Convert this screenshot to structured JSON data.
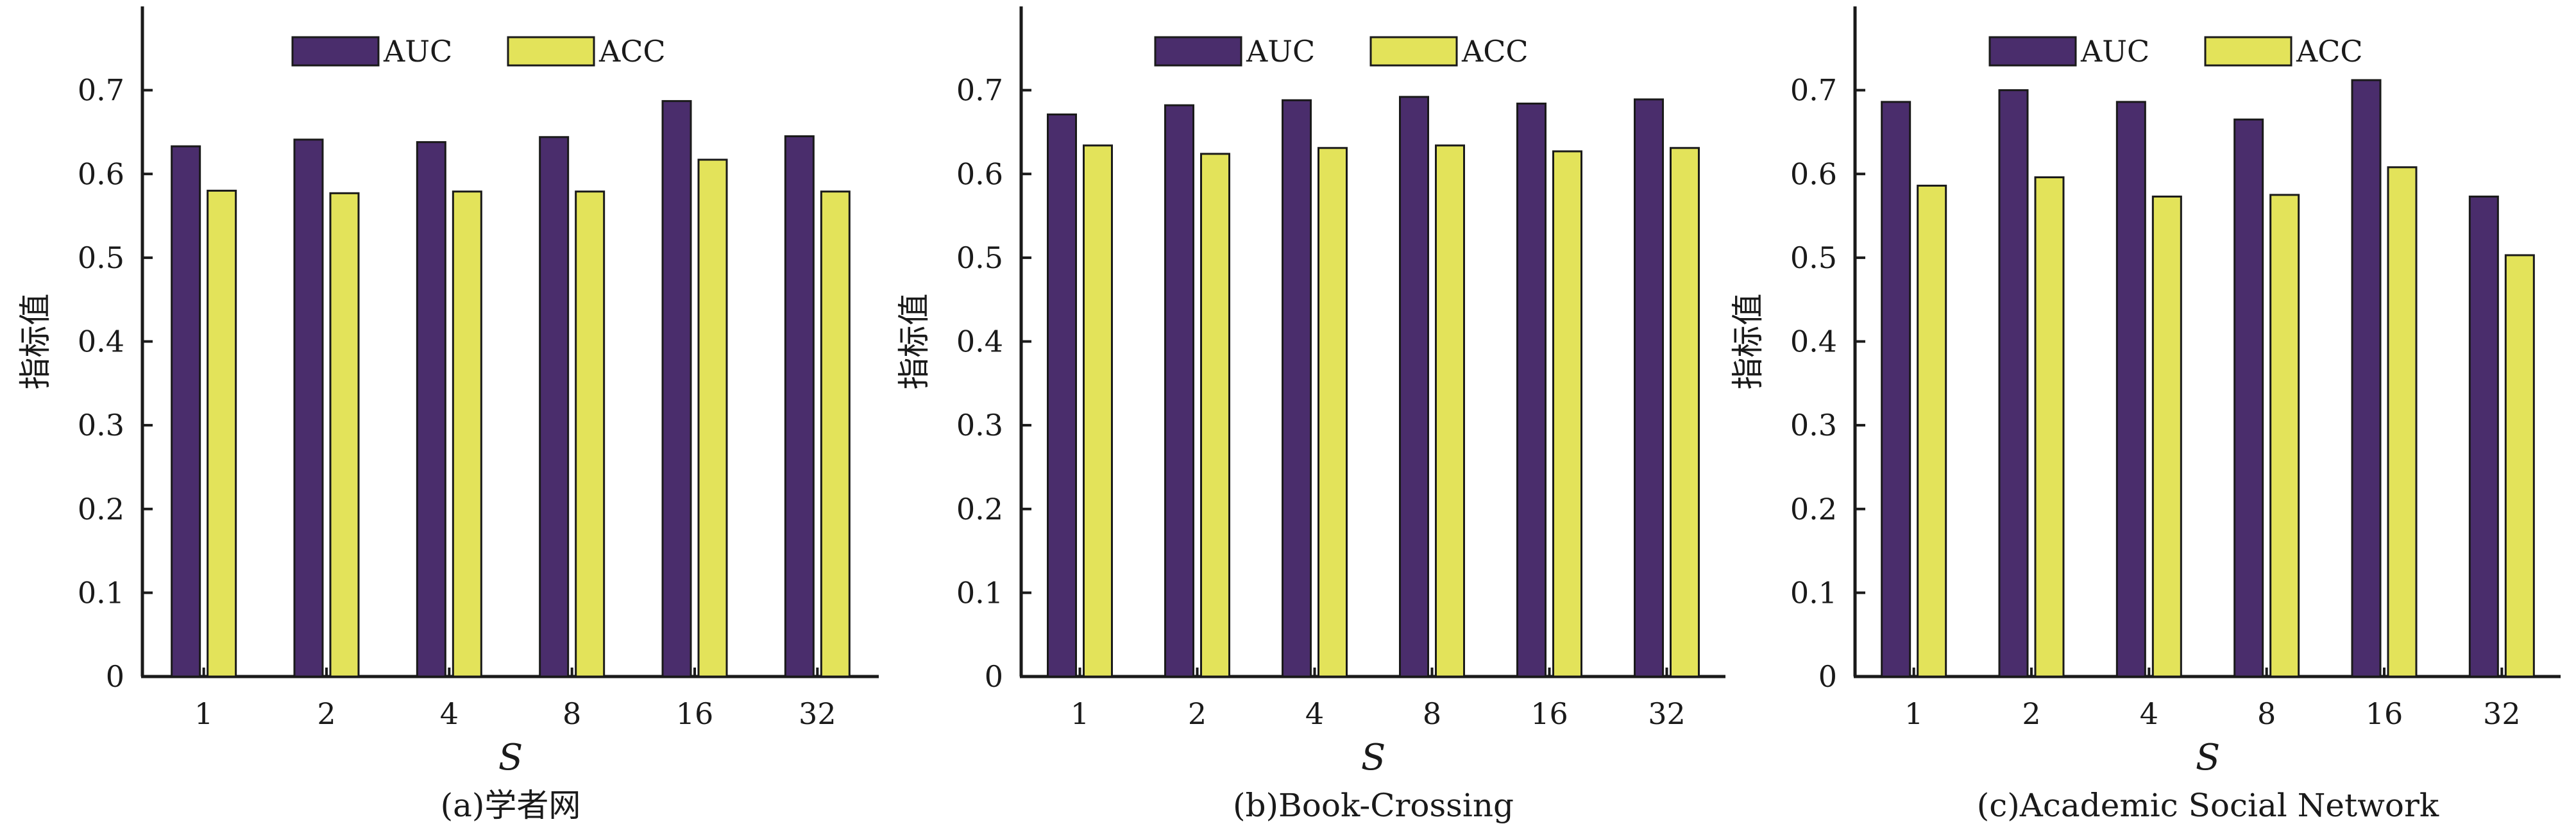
{
  "colors": {
    "AUC": "#4a2d6c",
    "ACC": "#e3e35a",
    "axis": "#1a1a1a"
  },
  "chart_data": [
    {
      "type": "bar",
      "caption": "(a)学者网",
      "xlabel": "S",
      "ylabel": "指标值",
      "categories": [
        "1",
        "2",
        "4",
        "8",
        "16",
        "32"
      ],
      "ylim": [
        0,
        0.8
      ],
      "yticks": [
        0,
        0.1,
        0.2,
        0.3,
        0.4,
        0.5,
        0.6,
        0.7
      ],
      "ytick_labels": [
        "0",
        "0.1",
        "0.2",
        "0.3",
        "0.4",
        "0.5",
        "0.6",
        "0.7"
      ],
      "legend_position": "top-center",
      "series": [
        {
          "name": "AUC",
          "values": [
            0.633,
            0.641,
            0.638,
            0.644,
            0.687,
            0.645
          ]
        },
        {
          "name": "ACC",
          "values": [
            0.58,
            0.577,
            0.579,
            0.579,
            0.617,
            0.579
          ]
        }
      ]
    },
    {
      "type": "bar",
      "caption": "(b)Book-Crossing",
      "xlabel": "S",
      "ylabel": "指标值",
      "categories": [
        "1",
        "2",
        "4",
        "8",
        "16",
        "32"
      ],
      "ylim": [
        0,
        0.8
      ],
      "yticks": [
        0,
        0.1,
        0.2,
        0.3,
        0.4,
        0.5,
        0.6,
        0.7
      ],
      "ytick_labels": [
        "0",
        "0.1",
        "0.2",
        "0.3",
        "0.4",
        "0.5",
        "0.6",
        "0.7"
      ],
      "legend_position": "top-center",
      "series": [
        {
          "name": "AUC",
          "values": [
            0.671,
            0.682,
            0.688,
            0.692,
            0.684,
            0.689
          ]
        },
        {
          "name": "ACC",
          "values": [
            0.634,
            0.624,
            0.631,
            0.634,
            0.627,
            0.631
          ]
        }
      ]
    },
    {
      "type": "bar",
      "caption": "(c)Academic Social Network",
      "xlabel": "S",
      "ylabel": "指标值",
      "categories": [
        "1",
        "2",
        "4",
        "8",
        "16",
        "32"
      ],
      "ylim": [
        0,
        0.8
      ],
      "yticks": [
        0,
        0.1,
        0.2,
        0.3,
        0.4,
        0.5,
        0.6,
        0.7
      ],
      "ytick_labels": [
        "0",
        "0.1",
        "0.2",
        "0.3",
        "0.4",
        "0.5",
        "0.6",
        "0.7"
      ],
      "legend_position": "top-center",
      "series": [
        {
          "name": "AUC",
          "values": [
            0.686,
            0.7,
            0.686,
            0.665,
            0.712,
            0.573
          ]
        },
        {
          "name": "ACC",
          "values": [
            0.586,
            0.596,
            0.573,
            0.575,
            0.608,
            0.503
          ]
        }
      ]
    }
  ]
}
